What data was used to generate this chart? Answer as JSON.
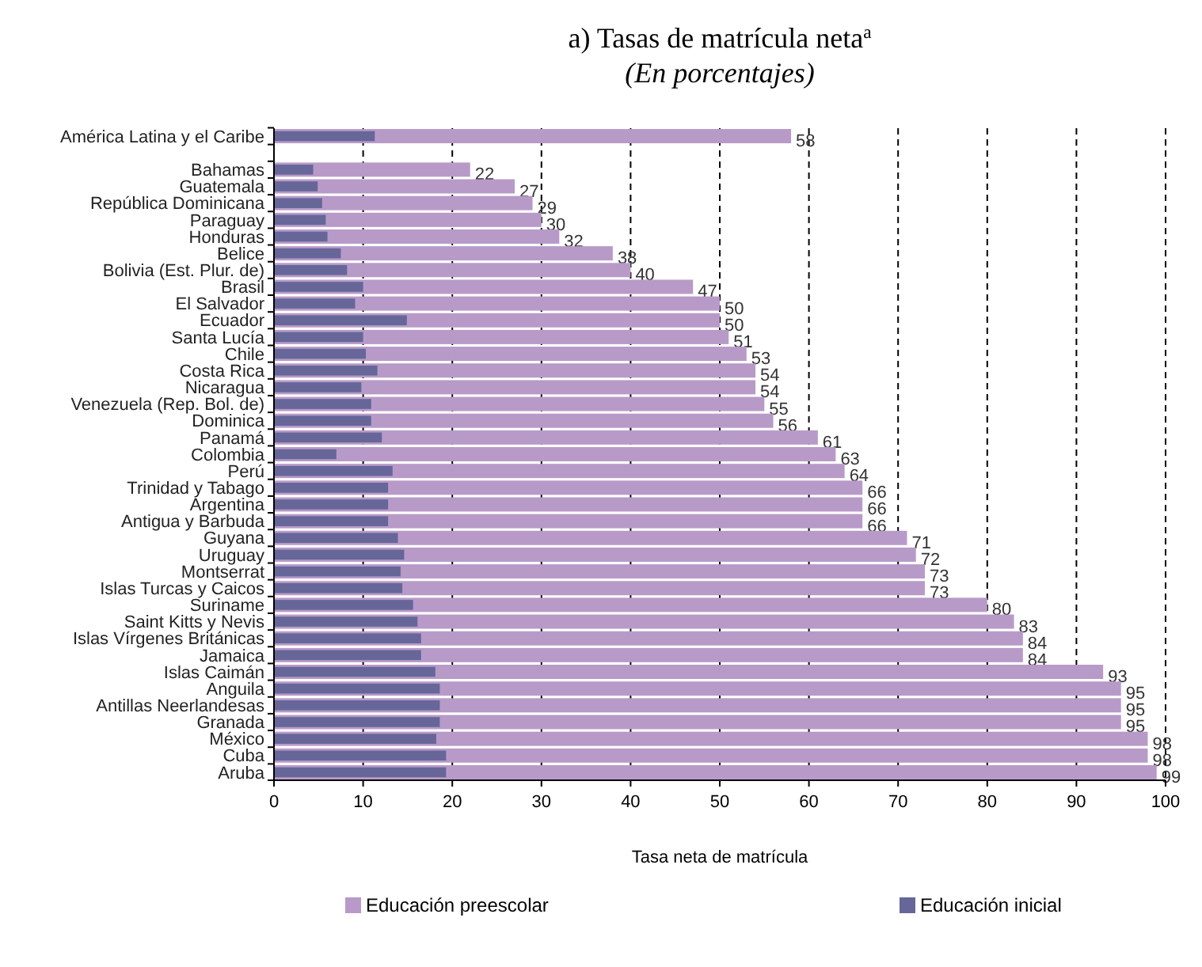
{
  "chart_data": {
    "type": "bar",
    "orientation": "horizontal",
    "title": "a) Tasas de matrícula neta$^{a}$",
    "subtitle": "(En porcentajes)",
    "xlabel": "Tasa neta de matrícula",
    "categories": [
      "América Latina y el Caribe",
      null,
      "Bahamas",
      "Guatemala",
      "República Dominicana",
      "Paraguay",
      "Honduras",
      "Belice",
      "Bolivia (Est. Plur. de)",
      "Brasil",
      "El Salvador",
      "Ecuador",
      "Santa Lucía",
      "Chile",
      "Costa Rica",
      "Nicaragua",
      "Venezuela (Rep. Bol. de)",
      "Dominica",
      "Panamá",
      "Colombia",
      "Perú",
      "Trinidad y Tabago",
      "Argentina",
      "Antigua y Barbuda",
      "Guyana",
      "Uruguay",
      "Montserrat",
      "Islas Turcas y Caicos",
      "Suriname",
      "Saint Kitts y Nevis",
      "Islas Vírgenes Británicas",
      "Jamaica",
      "Islas Caimán",
      "Anguila",
      "Antillas Neerlandesas",
      "Granada",
      "México",
      "Cuba",
      "Aruba"
    ],
    "series": [
      {
        "name": "Educación preescolar",
        "color": "#b89ac8",
        "values": [
          58,
          null,
          22,
          27,
          29,
          30,
          32,
          38,
          40,
          47,
          50,
          50,
          51,
          53,
          54,
          54,
          55,
          56,
          61,
          63,
          64,
          66,
          66,
          66,
          71,
          72,
          73,
          73,
          80,
          83,
          84,
          84,
          93,
          95,
          95,
          95,
          98,
          98,
          99
        ],
        "value_labels": [
          "58",
          null,
          "22",
          "27",
          "29",
          "30",
          "32",
          "38",
          "40",
          "47",
          "50",
          "50",
          "51",
          "53",
          "54",
          "54",
          "55",
          "56",
          "61",
          "63",
          "64",
          "66",
          "66",
          "66",
          "71",
          "72",
          "73",
          "73",
          "80",
          "83",
          "84",
          "84",
          "93",
          "95",
          "95",
          "95",
          "98",
          "98",
          "99"
        ]
      },
      {
        "name": "Educación inicial",
        "color": "#666699",
        "values": [
          11.3,
          null,
          4.4,
          4.9,
          5.4,
          5.8,
          6.0,
          7.5,
          8.2,
          10.0,
          9.1,
          14.9,
          10.0,
          10.3,
          11.6,
          9.8,
          10.9,
          10.9,
          12.1,
          7.0,
          13.3,
          12.8,
          12.8,
          12.8,
          13.9,
          14.6,
          14.2,
          14.4,
          15.6,
          16.1,
          16.5,
          16.5,
          18.1,
          18.6,
          18.6,
          18.6,
          18.2,
          19.3,
          19.3
        ]
      }
    ],
    "xlim": [
      0,
      100
    ],
    "xticks": [
      0,
      10,
      20,
      30,
      40,
      50,
      60,
      70,
      80,
      90,
      100
    ],
    "grid": "x",
    "line_style": "dashed",
    "legend": "bottom"
  }
}
